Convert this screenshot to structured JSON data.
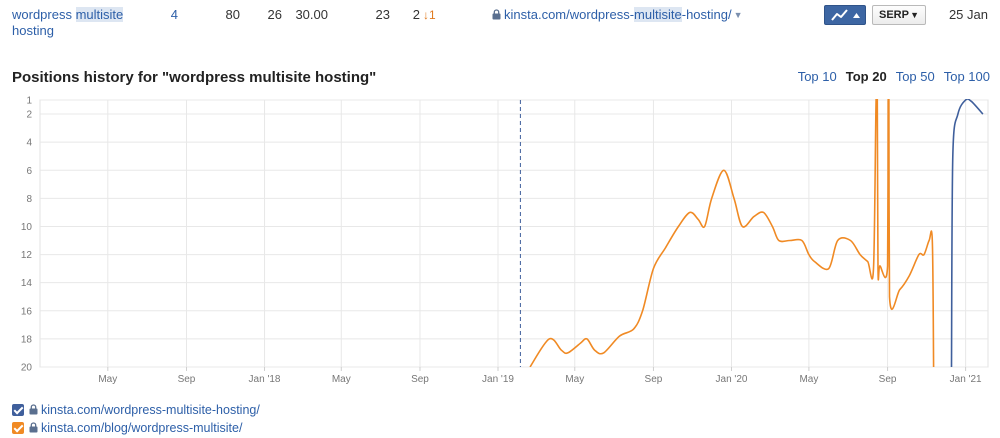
{
  "keyword_row": {
    "keyword_prefix": "wordpress ",
    "keyword_highlight": "multisite",
    "keyword_suffix": "hosting",
    "difficulty": "4",
    "volume": "80",
    "clicks": "26",
    "cpc": "30.00",
    "traffic": "23",
    "position": "2",
    "position_change": "↓1",
    "url_prefix": "kinsta.com/wordpress-",
    "url_highlight": "multisite",
    "url_suffix": "-hosting/",
    "serp_label": "SERP",
    "date": "25 Jan"
  },
  "chart_header": {
    "title": "Positions history for \"wordpress multisite hosting\"",
    "tabs": [
      "Top 10",
      "Top 20",
      "Top 50",
      "Top 100"
    ],
    "active_tab": "Top 20"
  },
  "colors": {
    "series_blue": "#3f5f9c",
    "series_orange": "#f08a24",
    "link": "#2d5fa8"
  },
  "chart_data": {
    "type": "line",
    "y_reversed": true,
    "ylim": [
      1,
      20
    ],
    "y_ticks": [
      1,
      2,
      4,
      6,
      8,
      10,
      12,
      14,
      16,
      18,
      20
    ],
    "x_range": [
      "2017-01-15",
      "2021-02-05"
    ],
    "x_ticks": [
      {
        "label": "May",
        "date": "2017-05-01"
      },
      {
        "label": "Sep",
        "date": "2017-09-01"
      },
      {
        "label": "Jan '18",
        "date": "2018-01-01"
      },
      {
        "label": "May",
        "date": "2018-05-01"
      },
      {
        "label": "Sep",
        "date": "2018-09-01"
      },
      {
        "label": "Jan '19",
        "date": "2019-01-01"
      },
      {
        "label": "May",
        "date": "2019-05-01"
      },
      {
        "label": "Sep",
        "date": "2019-09-01"
      },
      {
        "label": "Jan '20",
        "date": "2020-01-01"
      },
      {
        "label": "May",
        "date": "2020-05-01"
      },
      {
        "label": "Sep",
        "date": "2020-09-01"
      },
      {
        "label": "Jan '21",
        "date": "2021-01-01"
      }
    ],
    "marker_date": "2019-02-05",
    "grid": true,
    "legend_position": "bottom-left",
    "series": [
      {
        "name": "kinsta.com/wordpress-multisite-hosting/",
        "color": "#3f5f9c",
        "points": [
          [
            "2020-12-10",
            20
          ],
          [
            "2020-12-12",
            5
          ],
          [
            "2020-12-20",
            2
          ],
          [
            "2021-01-01",
            1
          ],
          [
            "2021-01-10",
            1.1
          ],
          [
            "2021-01-28",
            2
          ]
        ]
      },
      {
        "name": "kinsta.com/blog/wordpress-multisite/",
        "color": "#f08a24",
        "points": [
          [
            "2019-02-20",
            20
          ],
          [
            "2019-03-22",
            18
          ],
          [
            "2019-04-10",
            18.8
          ],
          [
            "2019-04-20",
            19
          ],
          [
            "2019-05-10",
            18.3
          ],
          [
            "2019-05-20",
            18
          ],
          [
            "2019-06-01",
            18.8
          ],
          [
            "2019-06-15",
            19
          ],
          [
            "2019-07-10",
            17.8
          ],
          [
            "2019-08-01",
            17.3
          ],
          [
            "2019-08-15",
            16
          ],
          [
            "2019-09-01",
            13
          ],
          [
            "2019-09-20",
            11.5
          ],
          [
            "2019-10-10",
            10
          ],
          [
            "2019-10-28",
            9
          ],
          [
            "2019-11-10",
            9.5
          ],
          [
            "2019-11-20",
            10
          ],
          [
            "2019-12-01",
            8
          ],
          [
            "2019-12-20",
            6
          ],
          [
            "2020-01-05",
            8
          ],
          [
            "2020-01-18",
            10
          ],
          [
            "2020-02-05",
            9.3
          ],
          [
            "2020-02-20",
            9
          ],
          [
            "2020-03-05",
            10
          ],
          [
            "2020-03-15",
            11
          ],
          [
            "2020-04-01",
            11
          ],
          [
            "2020-04-20",
            11
          ],
          [
            "2020-05-01",
            12
          ],
          [
            "2020-05-10",
            12.5
          ],
          [
            "2020-06-01",
            13
          ],
          [
            "2020-06-15",
            11
          ],
          [
            "2020-07-05",
            11
          ],
          [
            "2020-07-20",
            12
          ],
          [
            "2020-08-01",
            12.5
          ],
          [
            "2020-08-10",
            13
          ],
          [
            "2020-08-14",
            1
          ],
          [
            "2020-08-16",
            1
          ],
          [
            "2020-08-17",
            13
          ],
          [
            "2020-08-20",
            12.8
          ],
          [
            "2020-09-01",
            12.8
          ],
          [
            "2020-09-02",
            1
          ],
          [
            "2020-09-03",
            1
          ],
          [
            "2020-09-04",
            15
          ],
          [
            "2020-09-20",
            14.5
          ],
          [
            "2020-10-05",
            13.5
          ],
          [
            "2020-10-20",
            12
          ],
          [
            "2020-10-28",
            12
          ],
          [
            "2020-11-05",
            11
          ],
          [
            "2020-11-10",
            11
          ],
          [
            "2020-11-12",
            20
          ]
        ]
      }
    ]
  },
  "legend": [
    {
      "label": "kinsta.com/wordpress-multisite-hosting/",
      "color": "#3f5f9c"
    },
    {
      "label": "kinsta.com/blog/wordpress-multisite/",
      "color": "#f08a24"
    }
  ]
}
